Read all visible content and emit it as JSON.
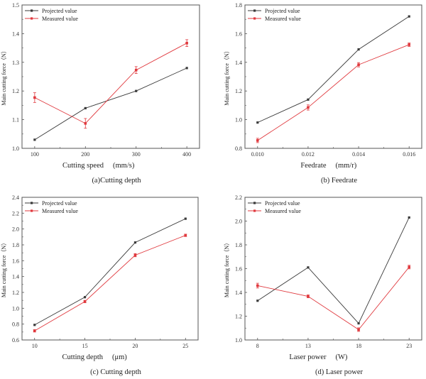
{
  "figure": {
    "legend": [
      "Projected value",
      "Measured value"
    ],
    "colors": {
      "projected": "#3a3a3a",
      "measured": "#e0393e",
      "axis": "#555555"
    }
  },
  "chart_data": [
    {
      "type": "line",
      "panel": "a",
      "caption": "(a)Cutting depth",
      "xlabel": "Cutting speed",
      "xunit": "(mm/s)",
      "ylabel": "Main cutting force（N）",
      "categories": [
        "100",
        "200",
        "300",
        "400"
      ],
      "x": [
        100,
        200,
        300,
        400
      ],
      "xlim": [
        75,
        425
      ],
      "ylim": [
        1.0,
        1.5
      ],
      "yticks": [
        "1.0",
        "1.1",
        "1.2",
        "1.3",
        "1.4",
        "1.5"
      ],
      "ytick_values": [
        1.0,
        1.1,
        1.2,
        1.3,
        1.4,
        1.5
      ],
      "series": [
        {
          "name": "Projected value",
          "values": [
            1.03,
            1.14,
            1.2,
            1.28
          ]
        },
        {
          "name": "Measured value",
          "values": [
            1.177,
            1.087,
            1.273,
            1.367
          ],
          "error": [
            0.017,
            0.017,
            0.012,
            0.012
          ]
        }
      ],
      "legend": "top-left",
      "grid": false
    },
    {
      "type": "line",
      "panel": "b",
      "caption": "(b) Feedrate",
      "xlabel": "Feedrate",
      "xunit": "(mm/r)",
      "ylabel": "Main cutting force（N）",
      "categories": [
        "0.010",
        "0.012",
        "0.014",
        "0.016"
      ],
      "x": [
        0.01,
        0.012,
        0.014,
        0.016
      ],
      "xlim": [
        0.0095,
        0.0165
      ],
      "ylim": [
        0.8,
        1.8
      ],
      "yticks": [
        "0.8",
        "1.0",
        "1.2",
        "1.4",
        "1.6",
        "1.8"
      ],
      "ytick_values": [
        0.8,
        1.0,
        1.2,
        1.4,
        1.6,
        1.8
      ],
      "series": [
        {
          "name": "Projected value",
          "values": [
            0.98,
            1.14,
            1.49,
            1.72
          ]
        },
        {
          "name": "Measured value",
          "values": [
            0.855,
            1.085,
            1.383,
            1.523
          ],
          "error": [
            0.015,
            0.018,
            0.015,
            0.012
          ]
        }
      ],
      "legend": "top-left",
      "grid": false
    },
    {
      "type": "line",
      "panel": "c",
      "caption": "(c) Cutting depth",
      "xlabel": "Cutting depth",
      "xunit": "(μm)",
      "ylabel": "Main cutting force（N）",
      "categories": [
        "10",
        "15",
        "20",
        "25"
      ],
      "x": [
        10,
        15,
        20,
        25
      ],
      "xlim": [
        8.75,
        26.25
      ],
      "ylim": [
        0.6,
        2.4
      ],
      "yticks": [
        "0.6",
        "0.8",
        "1.0",
        "1.2",
        "1.4",
        "1.6",
        "1.8",
        "2.0",
        "2.2",
        "2.4"
      ],
      "ytick_values": [
        0.6,
        0.8,
        1.0,
        1.2,
        1.4,
        1.6,
        1.8,
        2.0,
        2.2,
        2.4
      ],
      "series": [
        {
          "name": "Projected value",
          "values": [
            0.79,
            1.14,
            1.83,
            2.13
          ]
        },
        {
          "name": "Measured value",
          "values": [
            0.715,
            1.085,
            1.67,
            1.92
          ],
          "error": [
            0.015,
            0.015,
            0.02,
            0.015
          ]
        }
      ],
      "legend": "top-left",
      "grid": false
    },
    {
      "type": "line",
      "panel": "d",
      "caption": "(d) Laser power",
      "xlabel": "Laser power",
      "xunit": "(W)",
      "ylabel": "Main cutting force（N）",
      "categories": [
        "8",
        "13",
        "18",
        "23"
      ],
      "x": [
        8,
        13,
        18,
        23
      ],
      "xlim": [
        6.75,
        24.25
      ],
      "ylim": [
        1.0,
        2.2
      ],
      "yticks": [
        "1.0",
        "1.2",
        "1.4",
        "1.6",
        "1.8",
        "2.0",
        "2.2"
      ],
      "ytick_values": [
        1.0,
        1.2,
        1.4,
        1.6,
        1.8,
        2.0,
        2.2
      ],
      "series": [
        {
          "name": "Projected value",
          "values": [
            1.33,
            1.61,
            1.14,
            2.03
          ]
        },
        {
          "name": "Measured value",
          "values": [
            1.457,
            1.367,
            1.087,
            1.613
          ],
          "error": [
            0.02,
            0.012,
            0.015,
            0.015
          ]
        }
      ],
      "legend": "top-left",
      "grid": false
    }
  ]
}
